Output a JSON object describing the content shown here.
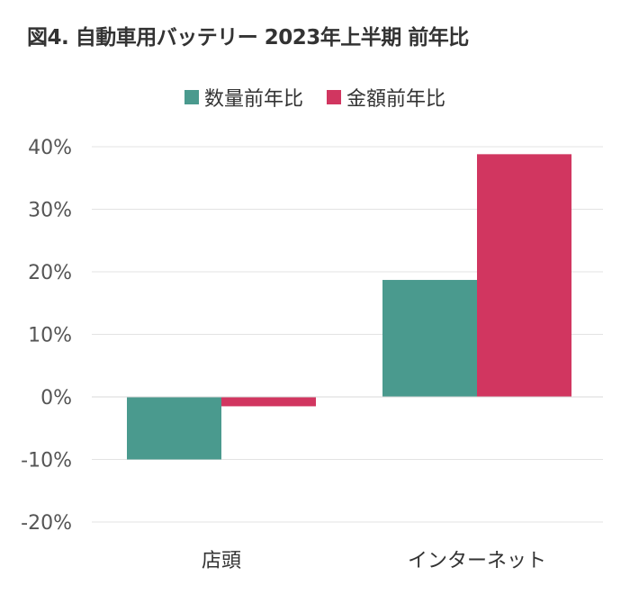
{
  "chart_data": {
    "type": "bar",
    "title": "図4. 自動車用バッテリー 2023年上半期 前年比",
    "categories": [
      "店頭",
      "インターネット"
    ],
    "series": [
      {
        "name": "数量前年比",
        "values": [
          -10,
          18.7
        ],
        "color": "#4a9a8e"
      },
      {
        "name": "金額前年比",
        "values": [
          -1.5,
          38.8
        ],
        "color": "#d13660"
      }
    ],
    "ylim": [
      -20,
      40
    ],
    "yticks": [
      40,
      30,
      20,
      10,
      0,
      -10,
      -20
    ],
    "tick_labels": [
      "40%",
      "30%",
      "20%",
      "10%",
      "0%",
      "-10%",
      "-20%"
    ],
    "xlabel": "",
    "ylabel": "",
    "grid": true,
    "legend_position": "top"
  }
}
